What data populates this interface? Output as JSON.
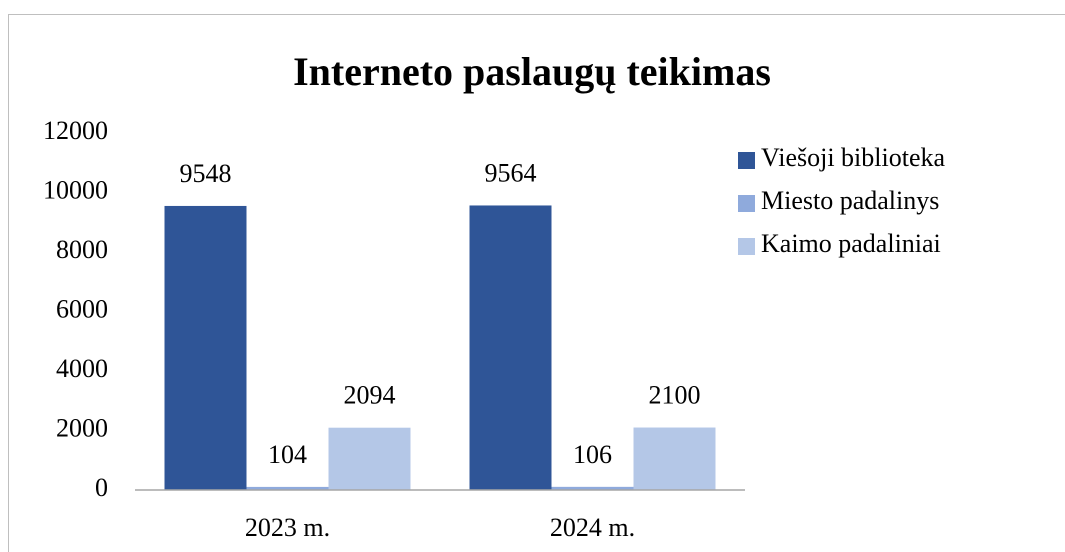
{
  "chart_data": {
    "type": "bar",
    "title": "Interneto paslaugų teikimas",
    "categories": [
      "2023 m.",
      "2024 m."
    ],
    "series": [
      {
        "name": "Viešoji biblioteka",
        "color": "#2f5597",
        "values": [
          9548,
          9564
        ]
      },
      {
        "name": "Miesto padalinys",
        "color": "#8faadc",
        "values": [
          104,
          106
        ]
      },
      {
        "name": "Kaimo padaliniai",
        "color": "#b4c7e7",
        "values": [
          2094,
          2100
        ]
      }
    ],
    "ylim": [
      0,
      12000
    ],
    "yticks": [
      0,
      2000,
      4000,
      6000,
      8000,
      10000,
      12000
    ],
    "grid": false,
    "legend": "right"
  }
}
